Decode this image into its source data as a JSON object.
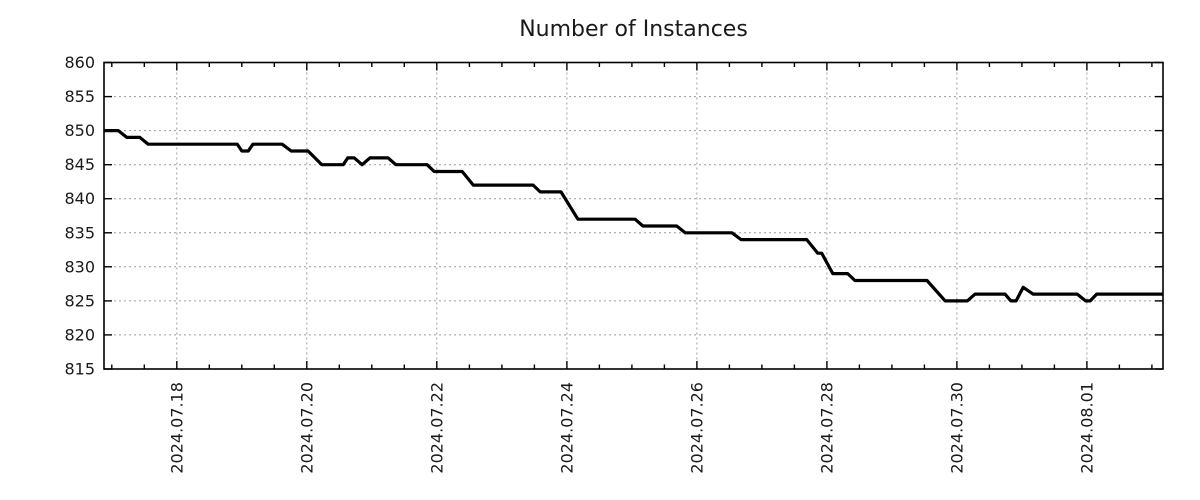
{
  "chart_data": {
    "type": "line",
    "title": "Number of Instances",
    "grid": true,
    "legend": "none",
    "x_axis": {
      "unit": "days since 2024-07-16 00:00",
      "lim": [
        0.88,
        17.17
      ],
      "minor_tick_step": 0.5,
      "major_ticks": [
        {
          "pos": 2,
          "label": "2024.07.18"
        },
        {
          "pos": 4,
          "label": "2024.07.20"
        },
        {
          "pos": 6,
          "label": "2024.07.22"
        },
        {
          "pos": 8,
          "label": "2024.07.24"
        },
        {
          "pos": 10,
          "label": "2024.07.26"
        },
        {
          "pos": 12,
          "label": "2024.07.28"
        },
        {
          "pos": 14,
          "label": "2024.07.30"
        },
        {
          "pos": 16,
          "label": "2024.08.01"
        }
      ]
    },
    "y_axis": {
      "lim": [
        815,
        860
      ],
      "tick_step": 5,
      "tick_values": [
        815,
        820,
        825,
        830,
        835,
        840,
        845,
        850,
        855,
        860
      ]
    },
    "colors": {
      "line": "#000000",
      "grid": "#9c9c9c",
      "border": "#000000",
      "text": "#1a1a1a"
    },
    "series": [
      {
        "name": "Number of Instances",
        "points": [
          [
            0.88,
            850
          ],
          [
            1.1,
            850
          ],
          [
            1.23,
            849
          ],
          [
            1.43,
            849
          ],
          [
            1.56,
            848
          ],
          [
            2.93,
            848
          ],
          [
            3.0,
            847
          ],
          [
            3.1,
            847
          ],
          [
            3.17,
            848
          ],
          [
            3.62,
            848
          ],
          [
            3.76,
            847
          ],
          [
            4.02,
            847
          ],
          [
            4.23,
            845
          ],
          [
            4.56,
            845
          ],
          [
            4.63,
            846
          ],
          [
            4.73,
            846
          ],
          [
            4.85,
            845
          ],
          [
            4.97,
            846
          ],
          [
            5.25,
            846
          ],
          [
            5.37,
            845
          ],
          [
            5.85,
            845
          ],
          [
            5.96,
            844
          ],
          [
            6.39,
            844
          ],
          [
            6.56,
            842
          ],
          [
            7.48,
            842
          ],
          [
            7.59,
            841
          ],
          [
            7.91,
            841
          ],
          [
            8.17,
            837
          ],
          [
            9.05,
            837
          ],
          [
            9.17,
            836
          ],
          [
            9.69,
            836
          ],
          [
            9.82,
            835
          ],
          [
            10.54,
            835
          ],
          [
            10.68,
            834
          ],
          [
            11.69,
            834
          ],
          [
            11.86,
            832
          ],
          [
            11.92,
            832
          ],
          [
            12.09,
            829
          ],
          [
            12.32,
            829
          ],
          [
            12.43,
            828
          ],
          [
            13.54,
            828
          ],
          [
            13.82,
            825
          ],
          [
            14.16,
            825
          ],
          [
            14.28,
            826
          ],
          [
            14.74,
            826
          ],
          [
            14.83,
            825
          ],
          [
            14.91,
            825
          ],
          [
            15.02,
            827
          ],
          [
            15.17,
            826
          ],
          [
            15.85,
            826
          ],
          [
            15.98,
            825
          ],
          [
            16.05,
            825
          ],
          [
            16.15,
            826
          ],
          [
            17.17,
            826
          ]
        ]
      }
    ]
  }
}
